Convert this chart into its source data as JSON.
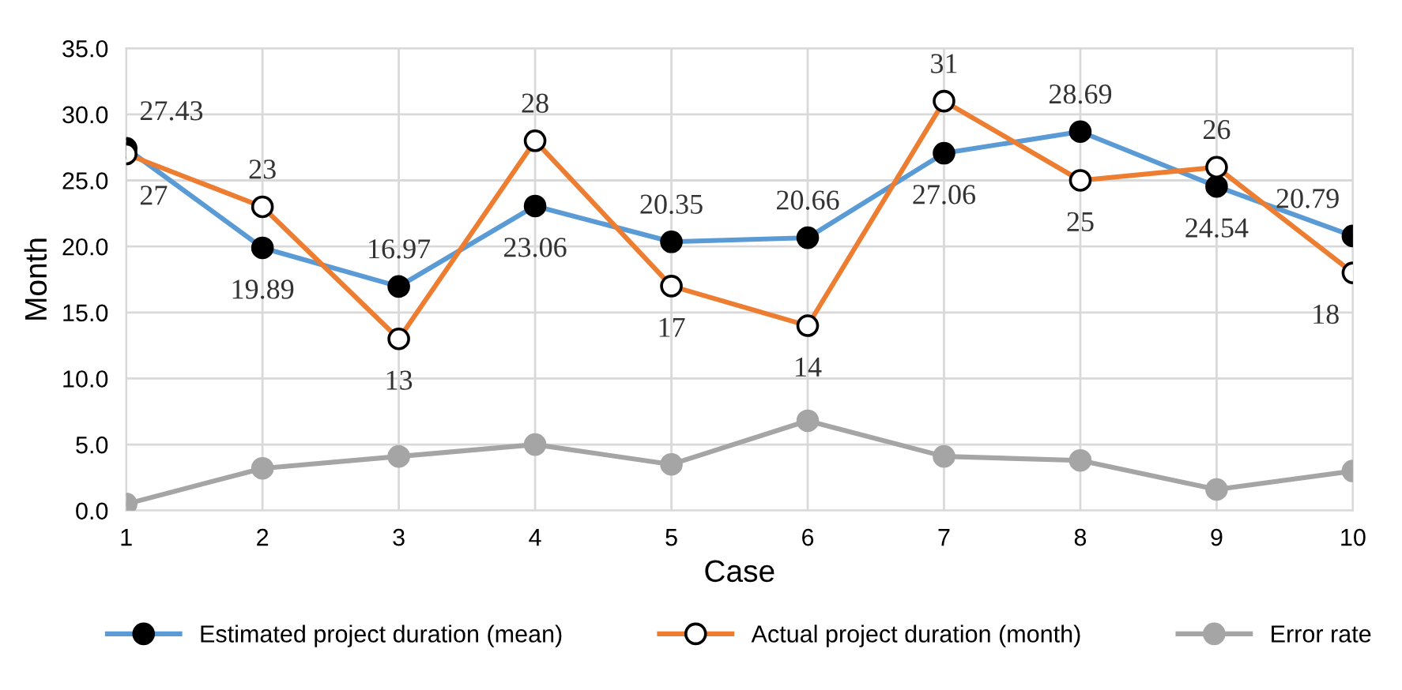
{
  "chart_data": {
    "type": "line",
    "xlabel": "Case",
    "ylabel": "Month",
    "categories": [
      "1",
      "2",
      "3",
      "4",
      "5",
      "6",
      "7",
      "8",
      "9",
      "10"
    ],
    "series": [
      {
        "name": "Estimated project duration (mean)",
        "color": "#5b9bd5",
        "marker": "circle",
        "values": [
          27.43,
          19.89,
          16.97,
          23.06,
          20.35,
          20.66,
          27.06,
          28.69,
          24.54,
          20.79
        ],
        "value_labels": [
          "27.43",
          "19.89",
          "16.97",
          "23.06",
          "20.35",
          "20.66",
          "27.06",
          "28.69",
          "24.54",
          "20.79"
        ]
      },
      {
        "name": "Actual project duration (month)",
        "color": "#ed7d31",
        "marker": "circle",
        "values": [
          27,
          23,
          13,
          28,
          17,
          14,
          31,
          25,
          26,
          18
        ],
        "value_labels": [
          "27",
          "23",
          "13",
          "28",
          "17",
          "14",
          "31",
          "25",
          "26",
          "18"
        ]
      },
      {
        "name": "Error rate",
        "color": "#a5a5a5",
        "marker": "circle",
        "values": [
          0.5,
          3.2,
          4.1,
          5.0,
          3.5,
          6.8,
          4.1,
          3.8,
          1.6,
          3.0
        ]
      }
    ],
    "ylim": [
      0,
      35
    ],
    "yticks": [
      {
        "value": 0,
        "label": "0.0"
      },
      {
        "value": 5,
        "label": "5.0"
      },
      {
        "value": 10,
        "label": "10.0"
      },
      {
        "value": 15,
        "label": "15.0"
      },
      {
        "value": 20,
        "label": "20.0"
      },
      {
        "value": 25,
        "label": "25.0"
      },
      {
        "value": 30,
        "label": "30.0"
      },
      {
        "value": 35,
        "label": "35.0"
      }
    ],
    "grid": true,
    "legend": "bottom",
    "line_style": "solid"
  }
}
